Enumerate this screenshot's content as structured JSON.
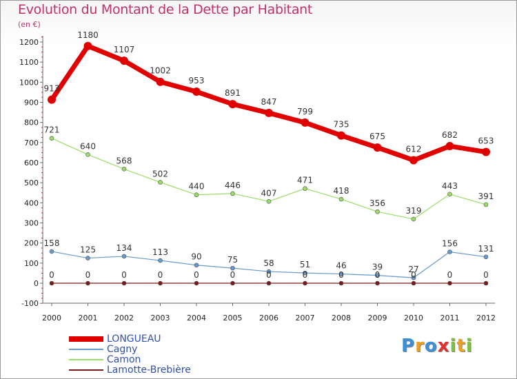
{
  "chart_data": {
    "type": "line",
    "title": "Evolution du Montant de la Dette par Habitant",
    "subtitle": "(en €)",
    "categories": [
      "2000",
      "2001",
      "2002",
      "2003",
      "2004",
      "2005",
      "2006",
      "2007",
      "2008",
      "2009",
      "2010",
      "2011",
      "2012"
    ],
    "yticks": [
      -100,
      0,
      100,
      200,
      300,
      400,
      500,
      600,
      700,
      800,
      900,
      1000,
      1100,
      1200
    ],
    "ylim": [
      -100,
      1250
    ],
    "grid": false,
    "legend_position": "bottom-left",
    "series": [
      {
        "name": "LONGUEAU",
        "color": "#e00000",
        "values": [
          913,
          1180,
          1107,
          1002,
          953,
          891,
          847,
          799,
          735,
          675,
          612,
          682,
          653
        ]
      },
      {
        "name": "Cagny",
        "color": "#6699cc",
        "values": [
          158,
          125,
          134,
          113,
          90,
          75,
          58,
          51,
          46,
          39,
          27,
          156,
          131
        ]
      },
      {
        "name": "Camon",
        "color": "#99dd66",
        "values": [
          721,
          640,
          568,
          502,
          440,
          446,
          407,
          471,
          418,
          356,
          319,
          443,
          391
        ]
      },
      {
        "name": "Lamotte-Brebière",
        "color": "#7a1a1a",
        "values": [
          0,
          0,
          0,
          0,
          0,
          0,
          0,
          0,
          0,
          0,
          0,
          0,
          0
        ]
      }
    ]
  },
  "logo": {
    "text": "Proxiti",
    "letters": [
      "P",
      "r",
      "o",
      "x",
      "i",
      "t",
      "i"
    ],
    "colors": [
      "#3b8fd6",
      "#f0a020",
      "#3b8fd6",
      "#e03030",
      "#80c040",
      "#f0a020",
      "#80c040"
    ]
  }
}
